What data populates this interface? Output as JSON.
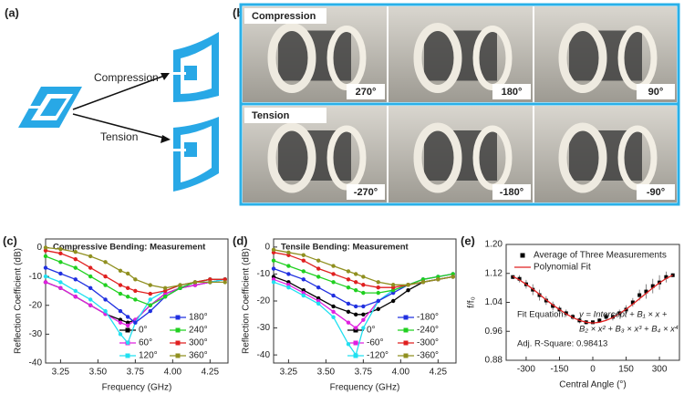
{
  "panel_labels": [
    "(a)",
    "(b)",
    "(c)",
    "(d)",
    "(e)"
  ],
  "diagram": {
    "arrows": [
      "Compression",
      "Tension"
    ]
  },
  "photos": {
    "rows": [
      {
        "label": "Compression",
        "angles": [
          "270°",
          "180°",
          "90°"
        ]
      },
      {
        "label": "Tension",
        "angles": [
          "-270°",
          "-180°",
          "-90°"
        ]
      }
    ]
  },
  "chart_data": [
    {
      "type": "line",
      "title": "Compressive Bending:  Measurement",
      "xlabel": "Frequency (GHz)",
      "ylabel": "Reflection Coefficient (dB)",
      "x": [
        3.15,
        3.25,
        3.35,
        3.45,
        3.55,
        3.65,
        3.7,
        3.75,
        3.85,
        3.95,
        4.05,
        4.15,
        4.25,
        4.35
      ],
      "xlim": [
        3.15,
        4.37
      ],
      "xticks": [
        {
          "value": 3.25,
          "label": "3.25"
        },
        {
          "value": 3.5,
          "label": "3.50"
        },
        {
          "value": 3.75,
          "label": "3.75"
        },
        {
          "value": 4.0,
          "label": "4.00"
        },
        {
          "value": 4.25,
          "label": "4.25"
        }
      ],
      "ylim": [
        -40,
        3
      ],
      "yticks": [
        0,
        -10,
        -20,
        -30,
        -40
      ],
      "series": [
        {
          "name": "0°",
          "color": "#000000",
          "values": [
            -12,
            -14,
            -17,
            -20,
            -23,
            -25,
            -26,
            -25,
            -20,
            -16,
            -14,
            -13,
            -12,
            -11
          ]
        },
        {
          "name": "60°",
          "color": "#e020e0",
          "values": [
            -12,
            -14,
            -17,
            -20,
            -23,
            -26,
            -27,
            -25,
            -20,
            -16,
            -14,
            -13,
            -12,
            -11
          ]
        },
        {
          "name": "120°",
          "color": "#20e0f0",
          "values": [
            -10,
            -12,
            -15,
            -18,
            -22,
            -30,
            -33,
            -26,
            -18,
            -15,
            -13,
            -12,
            -12,
            -11
          ]
        },
        {
          "name": "180°",
          "color": "#2030e0",
          "values": [
            -7,
            -9,
            -11,
            -14,
            -18,
            -22,
            -24,
            -26,
            -22,
            -17,
            -14,
            -12,
            -11,
            -11
          ]
        },
        {
          "name": "240°",
          "color": "#20d020",
          "values": [
            -3,
            -5,
            -7,
            -10,
            -13,
            -16,
            -17,
            -18,
            -20,
            -17,
            -14,
            -12,
            -11,
            -11
          ]
        },
        {
          "name": "300°",
          "color": "#e02020",
          "values": [
            -1,
            -2,
            -4,
            -7,
            -10,
            -13,
            -14,
            -15,
            -16,
            -15,
            -13,
            -12,
            -11,
            -11
          ]
        },
        {
          "name": "360°",
          "color": "#909020",
          "values": [
            0,
            -0.5,
            -1.5,
            -3,
            -5,
            -8,
            -9,
            -11,
            -13,
            -14,
            -13,
            -12,
            -12,
            -12
          ]
        }
      ]
    },
    {
      "type": "line",
      "title": "Tensile Bending:  Measurement",
      "xlabel": "Frequency (GHz)",
      "ylabel": "Reflection Coefficient (dB)",
      "x": [
        3.15,
        3.25,
        3.35,
        3.45,
        3.55,
        3.65,
        3.7,
        3.75,
        3.85,
        3.95,
        4.05,
        4.15,
        4.25,
        4.35
      ],
      "xlim": [
        3.15,
        4.37
      ],
      "xticks": [
        {
          "value": 3.25,
          "label": "3.25"
        },
        {
          "value": 3.5,
          "label": "3.50"
        },
        {
          "value": 3.75,
          "label": "3.75"
        },
        {
          "value": 4.0,
          "label": "4.00"
        },
        {
          "value": 4.25,
          "label": "4.25"
        }
      ],
      "ylim": [
        -43,
        3
      ],
      "yticks": [
        0,
        -10,
        -20,
        -30,
        -40
      ],
      "series": [
        {
          "name": "0°",
          "color": "#000000",
          "values": [
            -11,
            -13,
            -16,
            -19,
            -22,
            -24,
            -25,
            -25,
            -23,
            -20,
            -16,
            -13,
            -12,
            -11
          ]
        },
        {
          "name": "-60°",
          "color": "#e020e0",
          "values": [
            -12,
            -14,
            -17,
            -20,
            -24,
            -28,
            -30,
            -27,
            -20,
            -16,
            -14,
            -13,
            -12,
            -11
          ]
        },
        {
          "name": "-120°",
          "color": "#20e0f0",
          "values": [
            -13,
            -15,
            -18,
            -21,
            -26,
            -36,
            -40,
            -30,
            -20,
            -16,
            -14,
            -13,
            -12,
            -11
          ]
        },
        {
          "name": "-180°",
          "color": "#2030e0",
          "values": [
            -8,
            -10,
            -12,
            -15,
            -18,
            -21,
            -22,
            -22,
            -20,
            -17,
            -14,
            -12,
            -11,
            -10
          ]
        },
        {
          "name": "-240°",
          "color": "#20d020",
          "values": [
            -5,
            -7,
            -9,
            -11,
            -13,
            -15,
            -16,
            -17,
            -17,
            -16,
            -14,
            -12,
            -11,
            -10
          ]
        },
        {
          "name": "-300°",
          "color": "#e02020",
          "values": [
            -2,
            -3,
            -5,
            -8,
            -10,
            -12,
            -13,
            -14,
            -15,
            -15,
            -14,
            -13,
            -12,
            -11
          ]
        },
        {
          "name": "-360°",
          "color": "#909020",
          "values": [
            -1,
            -2,
            -3,
            -5,
            -7,
            -9,
            -10,
            -11,
            -13,
            -14,
            -14,
            -13,
            -12,
            -11
          ]
        }
      ]
    },
    {
      "type": "scatter",
      "xlabel": "Central Angle (°)",
      "ylabel": "f/f₀",
      "x": [
        -360,
        -330,
        -300,
        -270,
        -240,
        -210,
        -180,
        -150,
        -120,
        -90,
        -60,
        -30,
        0,
        30,
        60,
        90,
        120,
        150,
        180,
        210,
        240,
        270,
        300,
        330,
        360
      ],
      "xlim": [
        -390,
        390
      ],
      "xticks": [
        -300,
        -150,
        0,
        150,
        300
      ],
      "ylim": [
        0.88,
        1.2
      ],
      "yticks": [
        {
          "value": 0.88,
          "label": "0.88"
        },
        {
          "value": 0.96,
          "label": "0.96"
        },
        {
          "value": 1.04,
          "label": "1.04"
        },
        {
          "value": 1.12,
          "label": "1.12"
        },
        {
          "value": 1.2,
          "label": "1.20"
        }
      ],
      "annotations": [
        "Fit Equation:",
        "y = Intercept + B₁ × x +",
        "B₂ × x² + B₃ × x³ + B₄ × x⁴",
        "Adj. R-Square: 0.98413"
      ],
      "series": [
        {
          "name": "Average of Three Measurements",
          "color": "#000000",
          "mode": "markers",
          "values": [
            1.11,
            1.105,
            1.09,
            1.075,
            1.06,
            1.045,
            1.03,
            1.02,
            1.01,
            1.0,
            0.99,
            0.985,
            0.985,
            0.99,
            1.0,
            1.0,
            1.01,
            1.02,
            1.04,
            1.06,
            1.07,
            1.085,
            1.095,
            1.11,
            1.115
          ],
          "errors": [
            0.005,
            0.01,
            0.012,
            0.015,
            0.015,
            0.012,
            0.012,
            0.01,
            0.01,
            0.008,
            0.008,
            0.006,
            0.005,
            0.006,
            0.008,
            0.01,
            0.01,
            0.012,
            0.012,
            0.015,
            0.02,
            0.02,
            0.02,
            0.015,
            0.005
          ]
        },
        {
          "name": "Polynomial Fit",
          "color": "#e02020",
          "mode": "line",
          "values": [
            1.112,
            1.102,
            1.09,
            1.077,
            1.062,
            1.047,
            1.033,
            1.02,
            1.008,
            0.998,
            0.99,
            0.985,
            0.983,
            0.985,
            0.99,
            0.998,
            1.009,
            1.021,
            1.035,
            1.05,
            1.065,
            1.08,
            1.094,
            1.106,
            1.115
          ]
        }
      ]
    }
  ]
}
